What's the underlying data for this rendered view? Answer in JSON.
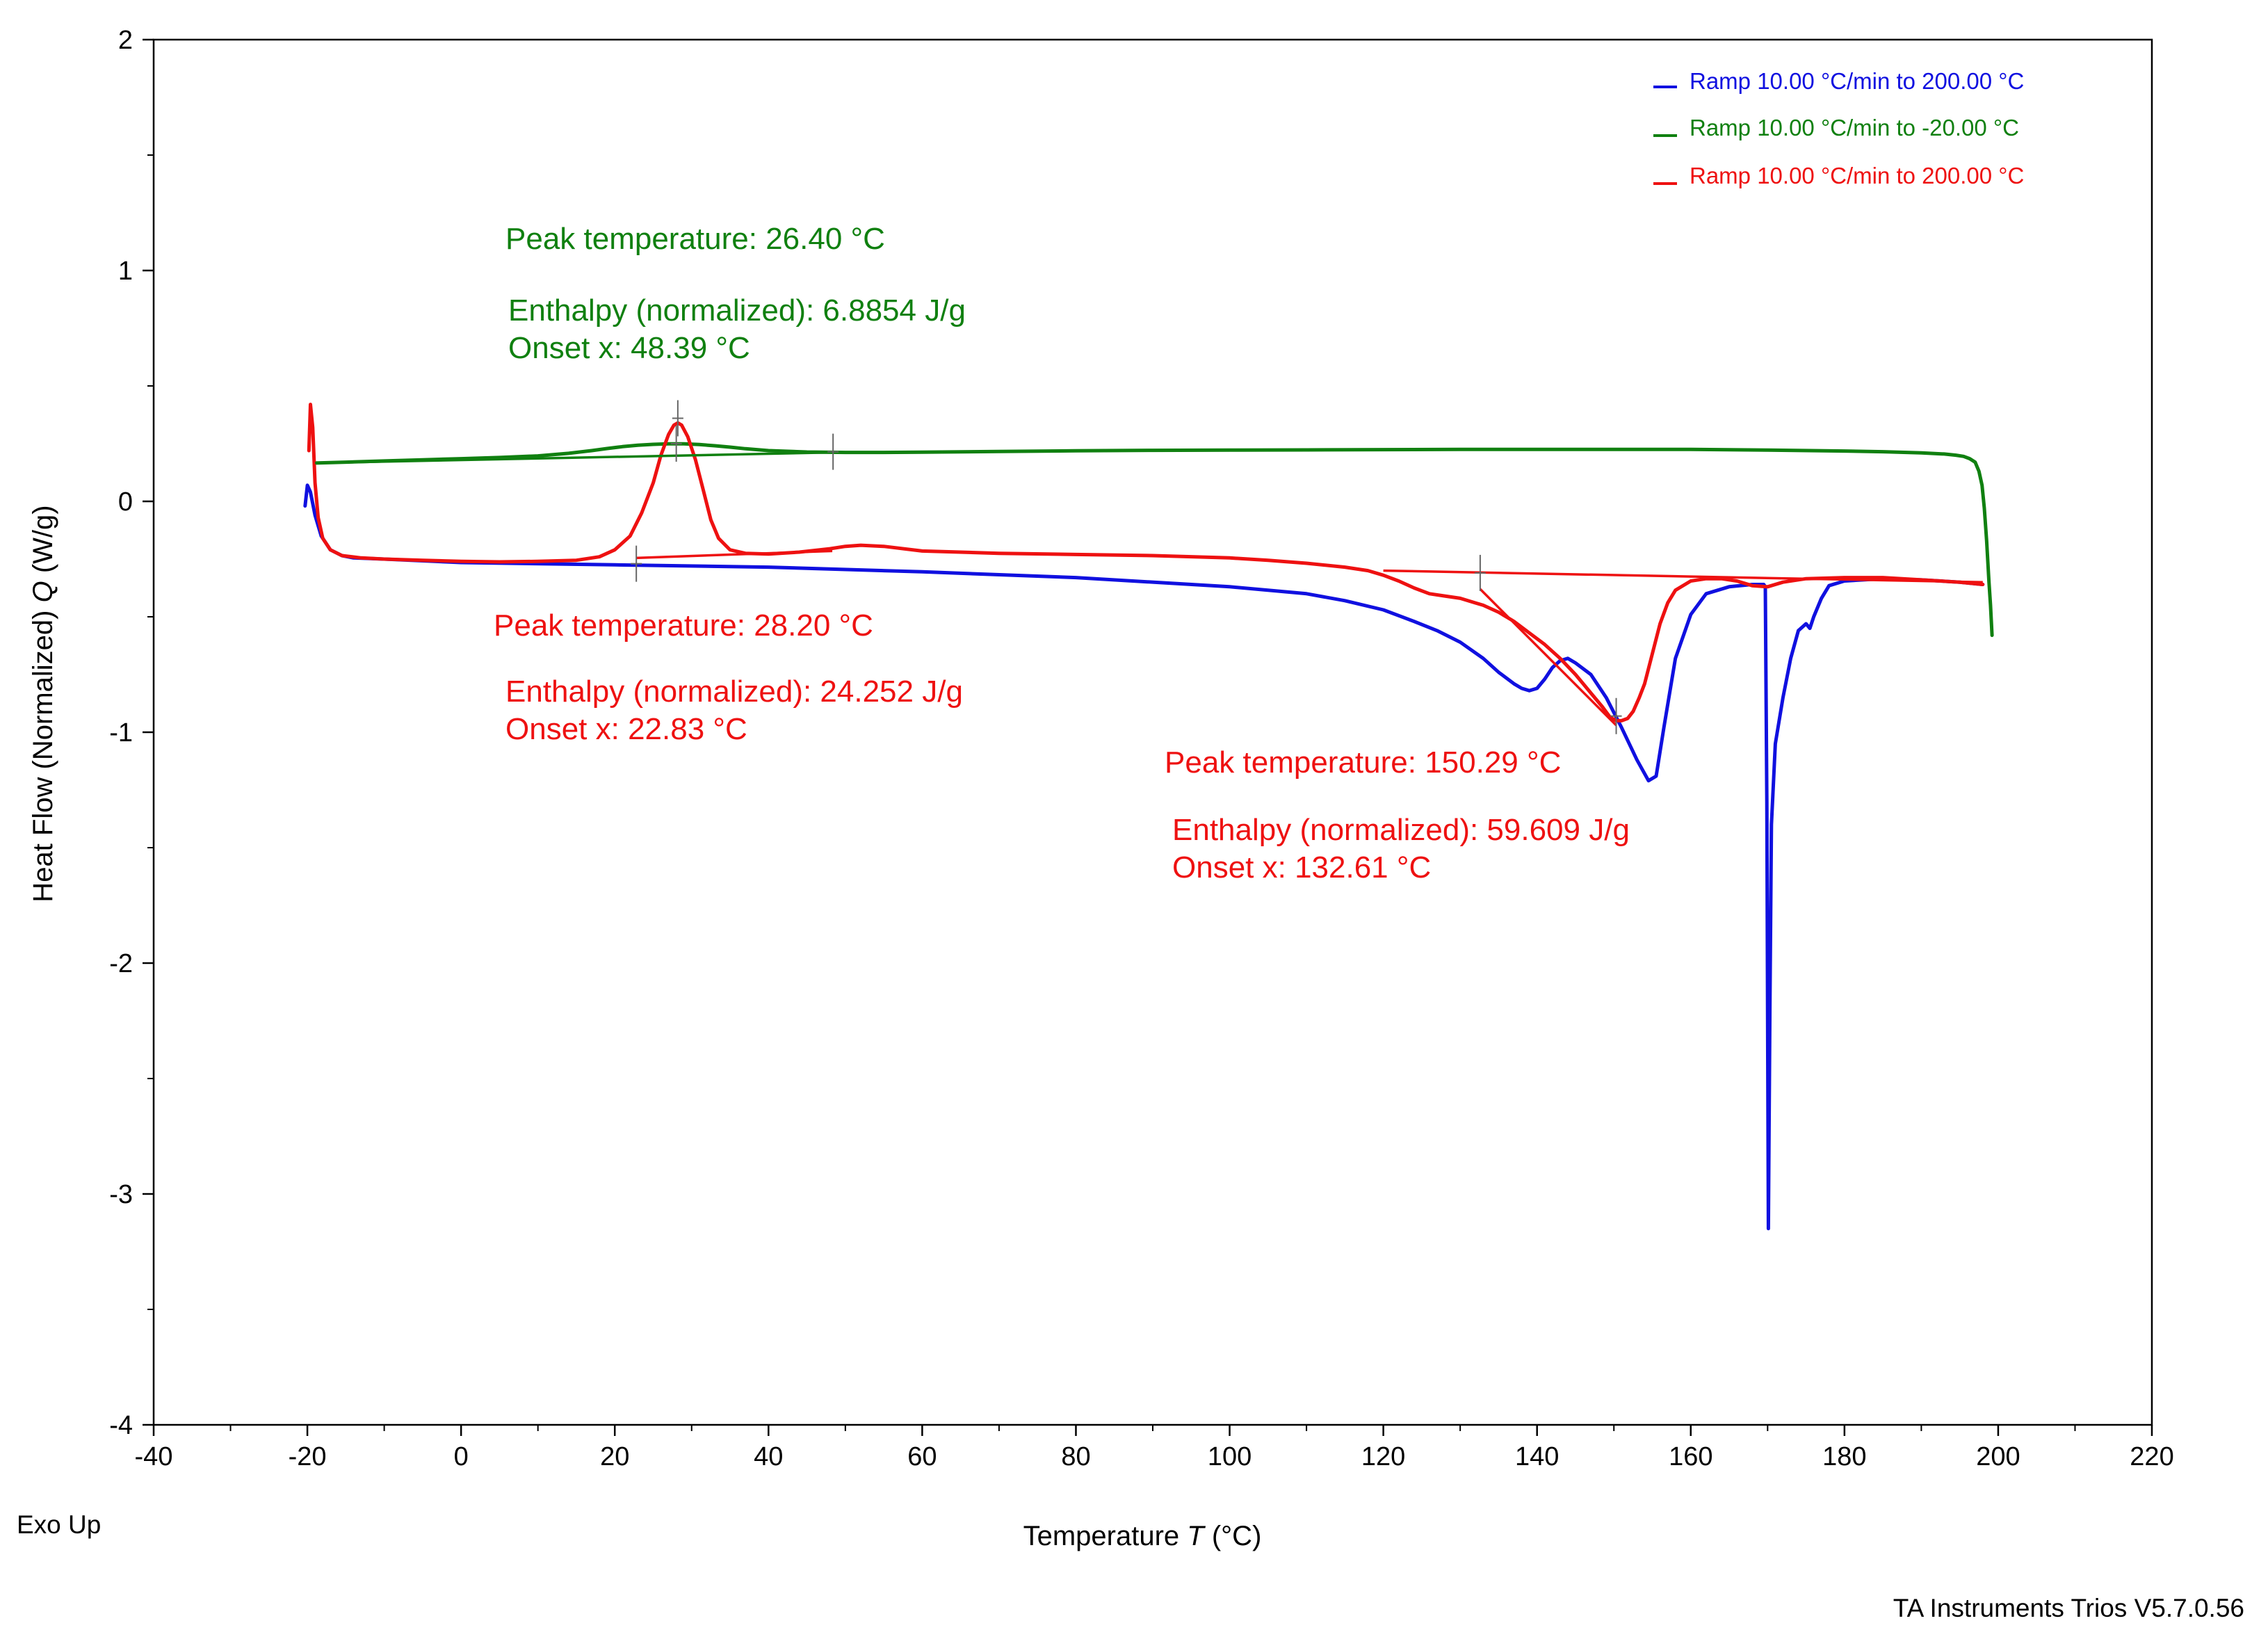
{
  "chart_data": {
    "type": "line",
    "title": "",
    "xlabel_prefix": "Temperature",
    "xlabel_symbol": "T",
    "xlabel_unit": "(°C)",
    "ylabel_prefix": "Heat Flow (Normalized)",
    "ylabel_symbol": "Q",
    "ylabel_unit": "(W/g)",
    "xlim": [
      -40,
      220
    ],
    "ylim": [
      -4,
      2
    ],
    "x_ticks": [
      -40,
      -20,
      0,
      20,
      40,
      60,
      80,
      100,
      120,
      140,
      160,
      180,
      200,
      220
    ],
    "y_ticks": [
      -4,
      -3,
      -2,
      -1,
      0,
      1,
      2
    ],
    "x_minor_step": 10,
    "y_minor_step": 0.5,
    "grid": false,
    "legend_position": "top-right",
    "corner_note": "Exo Up",
    "software_note": "TA Instruments Trios V5.7.0.56",
    "colors": {
      "blue": "#1010e0",
      "green": "#108010",
      "red": "#ee1111",
      "teal": "#1a9080"
    },
    "series": [
      {
        "name": "Ramp 10.00 °C/min to 200.00 °C",
        "color": "#1010e0",
        "x": [
          -20.3,
          -20.0,
          -19.6,
          -19.0,
          -18.2,
          -17.0,
          -15.5,
          -14.0,
          -10,
          0,
          20,
          40,
          60,
          80,
          100,
          110,
          115,
          120,
          124,
          127,
          130,
          133,
          135,
          137,
          138,
          139,
          140,
          141,
          142,
          143,
          144,
          145,
          147,
          149,
          151,
          153,
          154.5,
          155.5,
          156.5,
          158,
          160,
          162,
          165,
          168,
          169.5,
          169.7,
          169.9,
          170.1,
          170.3,
          170.5,
          171,
          172,
          173,
          174,
          175,
          175.5,
          176,
          177,
          178,
          180,
          185,
          190,
          195,
          198
        ],
        "y": [
          -0.02,
          0.07,
          0.04,
          -0.06,
          -0.15,
          -0.21,
          -0.235,
          -0.245,
          -0.25,
          -0.265,
          -0.275,
          -0.285,
          -0.305,
          -0.33,
          -0.37,
          -0.4,
          -0.43,
          -0.47,
          -0.52,
          -0.56,
          -0.61,
          -0.68,
          -0.74,
          -0.79,
          -0.81,
          -0.82,
          -0.81,
          -0.77,
          -0.72,
          -0.69,
          -0.68,
          -0.7,
          -0.75,
          -0.85,
          -0.98,
          -1.12,
          -1.21,
          -1.19,
          -0.98,
          -0.68,
          -0.49,
          -0.4,
          -0.37,
          -0.36,
          -0.36,
          -0.37,
          -1.3,
          -3.15,
          -2.2,
          -1.4,
          -1.05,
          -0.85,
          -0.68,
          -0.56,
          -0.53,
          -0.55,
          -0.5,
          -0.42,
          -0.365,
          -0.345,
          -0.335,
          -0.34,
          -0.35,
          -0.36
        ]
      },
      {
        "name": "Ramp 10.00 °C/min to -20.00 °C",
        "color": "#108010",
        "x": [
          199.2,
          199.0,
          198.8,
          198.5,
          198.2,
          197.9,
          197.5,
          197.0,
          196.3,
          195.5,
          194.5,
          193,
          190,
          185,
          180,
          170,
          160,
          150,
          140,
          130,
          120,
          110,
          100,
          90,
          80,
          70,
          60,
          55,
          50,
          45,
          40,
          37,
          35,
          33,
          31,
          29,
          27,
          25,
          23,
          21,
          19,
          17,
          14,
          10,
          5,
          0,
          -5,
          -10,
          -15,
          -19
        ],
        "y": [
          -0.58,
          -0.45,
          -0.35,
          -0.17,
          -0.03,
          0.07,
          0.13,
          0.17,
          0.185,
          0.195,
          0.2,
          0.205,
          0.21,
          0.215,
          0.218,
          0.222,
          0.225,
          0.225,
          0.225,
          0.225,
          0.224,
          0.223,
          0.222,
          0.221,
          0.219,
          0.216,
          0.213,
          0.212,
          0.212,
          0.214,
          0.22,
          0.228,
          0.235,
          0.241,
          0.246,
          0.249,
          0.249,
          0.247,
          0.243,
          0.237,
          0.229,
          0.22,
          0.208,
          0.197,
          0.19,
          0.185,
          0.18,
          0.175,
          0.17,
          0.166
        ]
      },
      {
        "name": "Ramp 10.00 °C/min to 200.00 °C",
        "color": "#ee1111",
        "x": [
          -19.8,
          -19.6,
          -19.3,
          -19.0,
          -18.6,
          -18.0,
          -17.0,
          -15.5,
          -13,
          -10,
          -5,
          0,
          5,
          10,
          15,
          18,
          20,
          22,
          23.5,
          25,
          26,
          27,
          27.7,
          28.2,
          28.7,
          29.5,
          30.5,
          31.5,
          32.5,
          33.5,
          35,
          37,
          40,
          44,
          48,
          50,
          52,
          55,
          60,
          70,
          80,
          90,
          100,
          105,
          110,
          115,
          118,
          120,
          122,
          124,
          126,
          128,
          130,
          132,
          133,
          135,
          137,
          139,
          141,
          143,
          145,
          147,
          148.5,
          149.5,
          150.3,
          151,
          151.8,
          152.5,
          153.3,
          154,
          155,
          156,
          157,
          158,
          160,
          162,
          164,
          166,
          168,
          170,
          172,
          175,
          180,
          185,
          190,
          195,
          198
        ],
        "y": [
          0.22,
          0.42,
          0.32,
          0.08,
          -0.07,
          -0.16,
          -0.21,
          -0.235,
          -0.245,
          -0.25,
          -0.255,
          -0.26,
          -0.262,
          -0.26,
          -0.255,
          -0.24,
          -0.21,
          -0.15,
          -0.05,
          0.08,
          0.2,
          0.29,
          0.33,
          0.34,
          0.33,
          0.28,
          0.18,
          0.05,
          -0.08,
          -0.16,
          -0.21,
          -0.225,
          -0.228,
          -0.22,
          -0.205,
          -0.195,
          -0.19,
          -0.195,
          -0.215,
          -0.225,
          -0.23,
          -0.235,
          -0.245,
          -0.255,
          -0.268,
          -0.285,
          -0.3,
          -0.32,
          -0.345,
          -0.375,
          -0.4,
          -0.41,
          -0.42,
          -0.44,
          -0.45,
          -0.48,
          -0.52,
          -0.57,
          -0.62,
          -0.68,
          -0.75,
          -0.83,
          -0.89,
          -0.935,
          -0.95,
          -0.95,
          -0.94,
          -0.91,
          -0.85,
          -0.79,
          -0.66,
          -0.53,
          -0.44,
          -0.385,
          -0.345,
          -0.335,
          -0.335,
          -0.345,
          -0.365,
          -0.37,
          -0.35,
          -0.335,
          -0.33,
          -0.33,
          -0.34,
          -0.35,
          -0.36
        ]
      }
    ],
    "integration_lines": [
      {
        "color": "#108010",
        "x": [
          -19,
          48.4
        ],
        "y": [
          0.166,
          0.212
        ]
      },
      {
        "color": "#ee1111",
        "x": [
          22.8,
          48.3
        ],
        "y": [
          -0.245,
          -0.215
        ]
      },
      {
        "color": "#ee1111",
        "x": [
          120,
          198
        ],
        "y": [
          -0.3,
          -0.35
        ]
      },
      {
        "color": "#ee1111",
        "x": [
          132.6,
          150.3
        ],
        "y": [
          -0.38,
          -0.97
        ]
      }
    ],
    "markers": [
      {
        "color": "#108010",
        "x": 48.4,
        "y": 0.215
      },
      {
        "color": "#108010",
        "x": 28.0,
        "y": 0.25
      },
      {
        "color": "#ee1111",
        "x": 22.8,
        "y": -0.27
      },
      {
        "color": "#ee1111",
        "x": 28.2,
        "y": 0.36
      },
      {
        "color": "#ee1111",
        "x": 132.6,
        "y": -0.31
      },
      {
        "color": "#ee1111",
        "x": 150.3,
        "y": -0.93
      }
    ],
    "annotations": [
      {
        "color": "#108010",
        "peak": "Peak temperature: 26.40 °C",
        "enthalpy": "Enthalpy (normalized): 6.8854 J/g",
        "onset": "Onset x: 48.39 °C"
      },
      {
        "color": "#ee1111",
        "peak": "Peak temperature: 28.20 °C",
        "enthalpy": "Enthalpy (normalized): 24.252 J/g",
        "onset": "Onset x: 22.83 °C"
      },
      {
        "color": "#ee1111",
        "peak": "Peak temperature: 150.29 °C",
        "enthalpy": "Enthalpy (normalized): 59.609 J/g",
        "onset": "Onset x: 132.61 °C"
      }
    ]
  }
}
